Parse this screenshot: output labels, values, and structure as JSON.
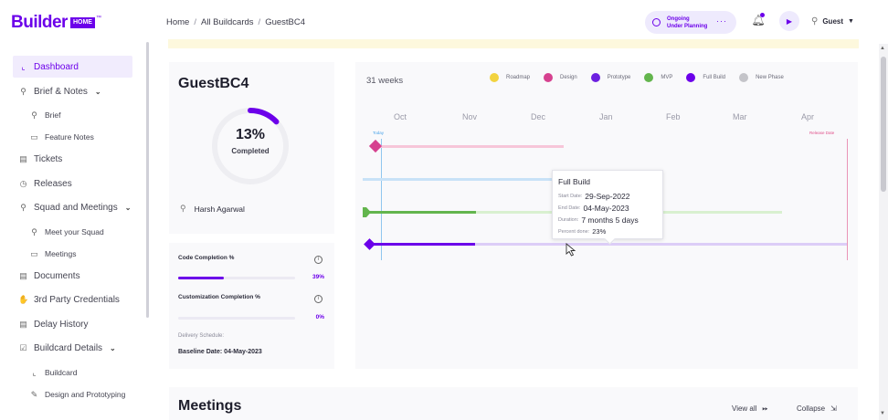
{
  "header": {
    "logo_text": "Builder",
    "logo_badge": "HOME",
    "logo_tm": "™",
    "breadcrumb": [
      "Home",
      "All Buildcards",
      "GuestBC4"
    ],
    "status_line1": "Ongoing",
    "status_line2": "Under Planning",
    "user_name": "Guest"
  },
  "sidebar": {
    "items": [
      {
        "label": "Dashboard",
        "icon": "chart-icon",
        "glyph": "⌞"
      },
      {
        "label": "Brief & Notes",
        "icon": "brief-icon",
        "glyph": "⚲"
      },
      {
        "label": "Brief",
        "icon": "brief-icon",
        "glyph": "⚲"
      },
      {
        "label": "Feature Notes",
        "icon": "laptop-icon",
        "glyph": "▭"
      },
      {
        "label": "Tickets",
        "icon": "document-icon",
        "glyph": "▤"
      },
      {
        "label": "Releases",
        "icon": "clock-icon",
        "glyph": "◷"
      },
      {
        "label": "Squad and Meetings",
        "icon": "squad-icon",
        "glyph": "⚲"
      },
      {
        "label": "Meet your Squad",
        "icon": "squad-icon",
        "glyph": "⚲"
      },
      {
        "label": "Meetings",
        "icon": "laptop-icon",
        "glyph": "▭"
      },
      {
        "label": "Documents",
        "icon": "document-icon",
        "glyph": "▤"
      },
      {
        "label": "3rd Party Credentials",
        "icon": "handshake-icon",
        "glyph": "✋"
      },
      {
        "label": "Delay History",
        "icon": "document-icon",
        "glyph": "▤"
      },
      {
        "label": "Buildcard Details",
        "icon": "checklist-icon",
        "glyph": "☑"
      },
      {
        "label": "Buildcard",
        "icon": "chart-icon",
        "glyph": "⌞"
      },
      {
        "label": "Design and Prototyping",
        "icon": "design-icon",
        "glyph": "✎"
      }
    ]
  },
  "project": {
    "name": "GuestBC4",
    "percent_text": "13%",
    "percent_value": 13,
    "completed_label": "Completed",
    "owner": "Harsh Agarwal"
  },
  "completion": {
    "code_label": "Code Completion %",
    "code_pct_text": "39%",
    "code_pct": 39,
    "custom_label": "Customization Completion %",
    "custom_pct_text": "0%",
    "custom_pct": 0,
    "delivery_label": "Delivery Schedule:",
    "baseline_label": "Baseline Date: 04-May-2023"
  },
  "timeline": {
    "weeks_label": "31 weeks",
    "legend": [
      {
        "name": "Roadmap",
        "color": "#f2d33f"
      },
      {
        "name": "Design",
        "color": "#d6418f"
      },
      {
        "name": "Prototype",
        "color": "#6c20e0"
      },
      {
        "name": "MVP",
        "color": "#63b54d"
      },
      {
        "name": "Full Build",
        "color": "#6c00ea"
      },
      {
        "name": "New Phase",
        "color": "#c4c4c9"
      }
    ],
    "months": [
      "Oct",
      "Nov",
      "Dec",
      "Jan",
      "Feb",
      "Mar",
      "Apr"
    ],
    "today_label": "Today",
    "release_label": "Release Date",
    "tooltip": {
      "title": "Full Build",
      "start_label": "Start Date:",
      "start_value": "29-Sep-2022",
      "end_label": "End Date:",
      "end_value": "04-May-2023",
      "duration_label": "Duration:",
      "duration_value": "7 months 5 days",
      "percent_label": "Percent done:",
      "percent_value": "23%"
    }
  },
  "meetings": {
    "title": "Meetings",
    "view_all": "View all",
    "collapse": "Collapse"
  }
}
